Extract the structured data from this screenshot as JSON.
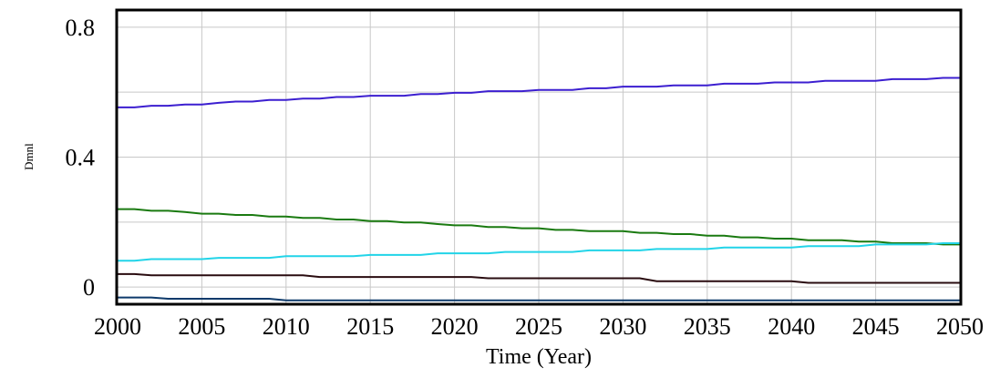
{
  "chart_data": {
    "type": "line",
    "xlabel": "Time (Year)",
    "ylabel": "Dmnl",
    "xlim": [
      2000,
      2050
    ],
    "ylim": [
      -0.05,
      0.85
    ],
    "grid": true,
    "x_ticks": [
      "2000",
      "2005",
      "2010",
      "2015",
      "2020",
      "2025",
      "2030",
      "2035",
      "2040",
      "2045",
      "2050"
    ],
    "y_ticks": [
      {
        "value": 0,
        "label": "0"
      },
      {
        "value": 0.4,
        "label": "0.4"
      },
      {
        "value": 0.8,
        "label": "0.8"
      }
    ],
    "series": [
      {
        "color": "#3c1fd0",
        "x": [
          2000,
          2001,
          2002,
          2003,
          2004,
          2005,
          2006,
          2007,
          2008,
          2009,
          2010,
          2011,
          2012,
          2013,
          2014,
          2015,
          2016,
          2017,
          2018,
          2019,
          2020,
          2021,
          2022,
          2023,
          2024,
          2025,
          2026,
          2027,
          2028,
          2029,
          2030,
          2031,
          2032,
          2033,
          2034,
          2035,
          2036,
          2037,
          2038,
          2039,
          2040,
          2041,
          2042,
          2043,
          2044,
          2045,
          2046,
          2047,
          2048,
          2049,
          2050
        ],
        "values": [
          0.553,
          0.553,
          0.558,
          0.558,
          0.562,
          0.562,
          0.567,
          0.571,
          0.571,
          0.576,
          0.576,
          0.58,
          0.58,
          0.585,
          0.585,
          0.589,
          0.589,
          0.589,
          0.594,
          0.594,
          0.598,
          0.598,
          0.603,
          0.603,
          0.603,
          0.607,
          0.607,
          0.607,
          0.612,
          0.612,
          0.617,
          0.617,
          0.617,
          0.621,
          0.621,
          0.621,
          0.626,
          0.626,
          0.626,
          0.63,
          0.63,
          0.63,
          0.635,
          0.635,
          0.635,
          0.635,
          0.64,
          0.64,
          0.64,
          0.644,
          0.644
        ]
      },
      {
        "color": "#1a7a10",
        "x": [
          2000,
          2001,
          2002,
          2003,
          2004,
          2005,
          2006,
          2007,
          2008,
          2009,
          2010,
          2011,
          2012,
          2013,
          2014,
          2015,
          2016,
          2017,
          2018,
          2019,
          2020,
          2021,
          2022,
          2023,
          2024,
          2025,
          2026,
          2027,
          2028,
          2029,
          2030,
          2031,
          2032,
          2033,
          2034,
          2035,
          2036,
          2037,
          2038,
          2039,
          2040,
          2041,
          2042,
          2043,
          2044,
          2045,
          2046,
          2047,
          2048,
          2049,
          2050
        ],
        "values": [
          0.24,
          0.24,
          0.235,
          0.235,
          0.231,
          0.226,
          0.226,
          0.222,
          0.222,
          0.217,
          0.217,
          0.213,
          0.213,
          0.208,
          0.208,
          0.203,
          0.203,
          0.199,
          0.199,
          0.194,
          0.19,
          0.19,
          0.185,
          0.185,
          0.181,
          0.181,
          0.176,
          0.176,
          0.172,
          0.172,
          0.172,
          0.167,
          0.167,
          0.163,
          0.163,
          0.158,
          0.158,
          0.153,
          0.153,
          0.149,
          0.149,
          0.144,
          0.144,
          0.144,
          0.14,
          0.14,
          0.135,
          0.135,
          0.135,
          0.131,
          0.131
        ]
      },
      {
        "color": "#22d4e8",
        "x": [
          2000,
          2001,
          2002,
          2003,
          2004,
          2005,
          2006,
          2007,
          2008,
          2009,
          2010,
          2011,
          2012,
          2013,
          2014,
          2015,
          2016,
          2017,
          2018,
          2019,
          2020,
          2021,
          2022,
          2023,
          2024,
          2025,
          2026,
          2027,
          2028,
          2029,
          2030,
          2031,
          2032,
          2033,
          2034,
          2035,
          2036,
          2037,
          2038,
          2039,
          2040,
          2041,
          2042,
          2043,
          2044,
          2045,
          2046,
          2047,
          2048,
          2049,
          2050
        ],
        "values": [
          0.081,
          0.081,
          0.086,
          0.086,
          0.086,
          0.086,
          0.09,
          0.09,
          0.09,
          0.09,
          0.095,
          0.095,
          0.095,
          0.095,
          0.095,
          0.099,
          0.099,
          0.099,
          0.099,
          0.104,
          0.104,
          0.104,
          0.104,
          0.108,
          0.108,
          0.108,
          0.108,
          0.108,
          0.113,
          0.113,
          0.113,
          0.113,
          0.117,
          0.117,
          0.117,
          0.117,
          0.122,
          0.122,
          0.122,
          0.122,
          0.122,
          0.126,
          0.126,
          0.126,
          0.126,
          0.131,
          0.131,
          0.131,
          0.131,
          0.135,
          0.135
        ]
      },
      {
        "color": "#2a0c10",
        "x": [
          2000,
          2001,
          2002,
          2003,
          2004,
          2005,
          2006,
          2007,
          2008,
          2009,
          2010,
          2011,
          2012,
          2013,
          2014,
          2015,
          2016,
          2017,
          2018,
          2019,
          2020,
          2021,
          2022,
          2023,
          2024,
          2025,
          2026,
          2027,
          2028,
          2029,
          2030,
          2031,
          2032,
          2033,
          2034,
          2035,
          2036,
          2037,
          2038,
          2039,
          2040,
          2041,
          2042,
          2043,
          2044,
          2045,
          2046,
          2047,
          2048,
          2049,
          2050
        ],
        "values": [
          0.04,
          0.04,
          0.036,
          0.036,
          0.036,
          0.036,
          0.036,
          0.036,
          0.036,
          0.036,
          0.036,
          0.036,
          0.031,
          0.031,
          0.031,
          0.031,
          0.031,
          0.031,
          0.031,
          0.031,
          0.031,
          0.031,
          0.027,
          0.027,
          0.027,
          0.027,
          0.027,
          0.027,
          0.027,
          0.027,
          0.027,
          0.027,
          0.018,
          0.018,
          0.018,
          0.018,
          0.018,
          0.018,
          0.018,
          0.018,
          0.018,
          0.013,
          0.013,
          0.013,
          0.013,
          0.013,
          0.013,
          0.013,
          0.013,
          0.013,
          0.013
        ]
      },
      {
        "color": "#0e3a6b",
        "x": [
          2000,
          2001,
          2002,
          2003,
          2004,
          2005,
          2006,
          2007,
          2008,
          2009,
          2010,
          2011,
          2012,
          2013,
          2014,
          2015,
          2016,
          2017,
          2018,
          2019,
          2020,
          2021,
          2022,
          2023,
          2024,
          2025,
          2026,
          2027,
          2028,
          2029,
          2030,
          2031,
          2032,
          2033,
          2034,
          2035,
          2036,
          2037,
          2038,
          2039,
          2040,
          2041,
          2042,
          2043,
          2044,
          2045,
          2046,
          2047,
          2048,
          2049,
          2050
        ],
        "values": [
          -0.032,
          -0.032,
          -0.032,
          -0.036,
          -0.036,
          -0.036,
          -0.036,
          -0.036,
          -0.036,
          -0.036,
          -0.041,
          -0.041,
          -0.041,
          -0.041,
          -0.041,
          -0.041,
          -0.041,
          -0.041,
          -0.041,
          -0.041,
          -0.041,
          -0.041,
          -0.041,
          -0.041,
          -0.041,
          -0.041,
          -0.041,
          -0.041,
          -0.041,
          -0.041,
          -0.041,
          -0.041,
          -0.041,
          -0.041,
          -0.041,
          -0.041,
          -0.041,
          -0.041,
          -0.041,
          -0.041,
          -0.041,
          -0.041,
          -0.041,
          -0.041,
          -0.041,
          -0.041,
          -0.041,
          -0.041,
          -0.041,
          -0.041,
          -0.041
        ]
      }
    ]
  }
}
